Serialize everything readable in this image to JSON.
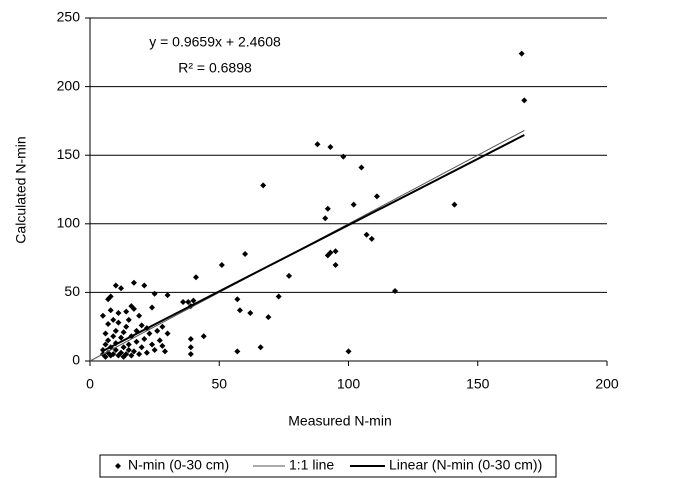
{
  "chart_data": {
    "type": "scatter",
    "x_label": "Measured N-min",
    "y_label": "Calculated  N-min",
    "annotations": [
      "y = 0.9659x + 2.4608",
      "R² = 0.6898"
    ],
    "xlim": [
      0,
      200
    ],
    "xticks": [
      0,
      50,
      100,
      150,
      200
    ],
    "ylim": [
      0,
      250
    ],
    "yticks": [
      0,
      50,
      100,
      150,
      200,
      250
    ],
    "grid": true,
    "series": [
      {
        "name": "N-min (0-30 cm)",
        "color": "#000000",
        "line": false,
        "x": [
          5,
          5,
          5,
          6,
          6,
          6,
          7,
          7,
          7,
          7,
          8,
          8,
          8,
          8,
          9,
          9,
          9,
          10,
          10,
          10,
          10,
          11,
          11,
          11,
          12,
          12,
          12,
          13,
          13,
          13,
          14,
          14,
          14,
          15,
          15,
          15,
          16,
          16,
          16,
          17,
          17,
          17,
          18,
          18,
          19,
          19,
          20,
          20,
          21,
          21,
          22,
          22,
          23,
          24,
          24,
          25,
          25,
          26,
          27,
          28,
          28,
          29,
          30,
          30,
          36,
          38,
          39,
          39,
          39,
          39,
          40,
          41,
          44,
          51,
          57,
          57,
          58,
          60,
          62,
          66,
          67,
          69,
          73,
          77,
          88,
          91,
          92,
          92,
          93,
          93,
          95,
          95,
          98,
          100,
          102,
          105,
          107,
          109,
          111,
          118,
          141,
          167,
          168
        ],
        "values": [
          5,
          8,
          33,
          3,
          12,
          20,
          45,
          6,
          15,
          27,
          47,
          4,
          10,
          37,
          30,
          5,
          18,
          55,
          8,
          13,
          22,
          4,
          35,
          28,
          6,
          17,
          53,
          10,
          21,
          3,
          36,
          5,
          25,
          12,
          8,
          30,
          40,
          4,
          18,
          57,
          38,
          7,
          22,
          14,
          5,
          33,
          10,
          26,
          55,
          16,
          24,
          6,
          20,
          39,
          12,
          49,
          8,
          22,
          15,
          11,
          25,
          7,
          48,
          20,
          43,
          43,
          40,
          16,
          10,
          5,
          44,
          61,
          18,
          70,
          45,
          7,
          37,
          78,
          35,
          10,
          128,
          32,
          47,
          62,
          158,
          104,
          111,
          77,
          156,
          79,
          80,
          70,
          149,
          7,
          114,
          141,
          92,
          89,
          120,
          51,
          114,
          224,
          190
        ]
      },
      {
        "name": "1:1 line",
        "color": "#555555",
        "line": true,
        "x": [
          0,
          168
        ],
        "values": [
          0,
          168
        ]
      },
      {
        "name": "Linear (N-min (0-30 cm))",
        "color": "#000000",
        "line": true,
        "x": [
          5,
          168
        ],
        "values": [
          7.29,
          164.73
        ]
      }
    ]
  }
}
